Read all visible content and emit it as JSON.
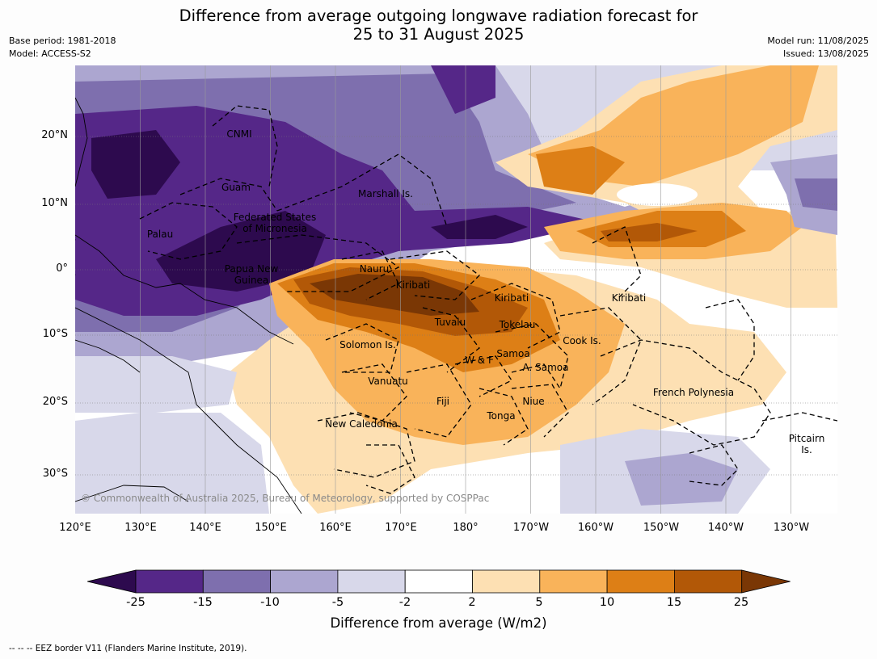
{
  "title": {
    "line1": "Difference from average outgoing longwave radiation forecast for",
    "line2": "25 to 31 August 2025"
  },
  "meta": {
    "base_period": "Base period: 1981-2018",
    "model": "Model: ACCESS-S2",
    "model_run": "Model run: 11/08/2025",
    "issued": "Issued: 13/08/2025"
  },
  "axes": {
    "lat_labels": [
      "20°N",
      "10°N",
      "0°",
      "10°S",
      "20°S",
      "30°S"
    ],
    "lon_labels": [
      "120°E",
      "130°E",
      "140°E",
      "150°E",
      "160°E",
      "170°E",
      "180°",
      "170°W",
      "160°W",
      "150°W",
      "140°W",
      "130°W"
    ]
  },
  "places": {
    "cnmi": "CNMI",
    "guam": "Guam",
    "marshall": "Marshall Is.",
    "fsm_line1": "Federated States",
    "fsm_line2": "of Micronesia",
    "palau": "Palau",
    "png_line1": "Papua New",
    "png_line2": "Guinea",
    "nauru": "Nauru",
    "kiribati_w": "Kiribati",
    "kiribati_c": "Kiribati",
    "kiribati_e": "Kiribati",
    "tuvalu": "Tuvalu",
    "tokelau": "Tokelau",
    "solomon": "Solomon Is.",
    "cook": "Cook Is.",
    "samoa": "Samoa",
    "wf": "W & F",
    "asamoa": "A. Samoa",
    "vanuatu": "Vanuatu",
    "fiji": "Fiji",
    "niue": "Niue",
    "tonga": "Tonga",
    "new_caledonia": "New Caledonia",
    "french_polynesia": "French Polynesia",
    "pitcairn_line1": "Pitcairn",
    "pitcairn_line2": "Is."
  },
  "copyright": "© Commonwealth of Australia 2025, Bureau of Meteorology, supported by COSPPac",
  "colorbar": {
    "ticks": [
      "-25",
      "-15",
      "-10",
      "-5",
      "-2",
      "2",
      "5",
      "10",
      "15",
      "25"
    ],
    "colors": [
      "#2d0a4e",
      "#552788",
      "#7e6fae",
      "#aca6d0",
      "#d8d8ea",
      "#ffffff",
      "#fde0b3",
      "#f9b35a",
      "#dd7f16",
      "#b25807",
      "#7a3705"
    ],
    "title": "Difference from average (W/m2)"
  },
  "footer": "--  --  -- EEZ border V11 (Flanders Marine Institute, 2019)."
}
